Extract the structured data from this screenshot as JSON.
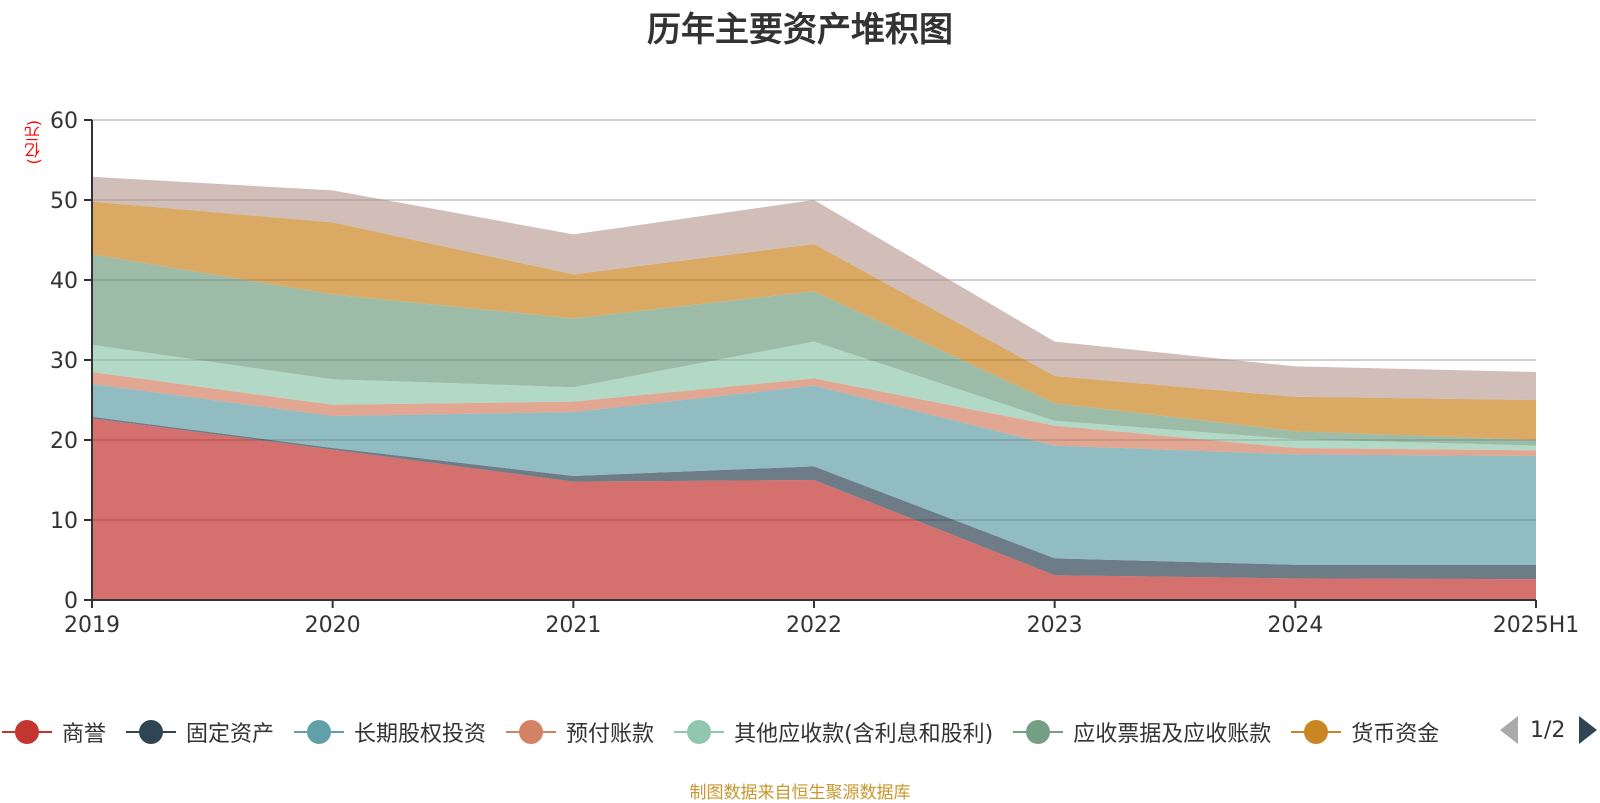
{
  "chart_data": {
    "type": "area",
    "stacked": true,
    "title": "历年主要资产堆积图",
    "ylabel": "(亿元)",
    "xlabel": "",
    "categories": [
      "2019",
      "2020",
      "2021",
      "2022",
      "2023",
      "2024",
      "2025H1"
    ],
    "ylim": [
      0,
      60
    ],
    "yticks": [
      0,
      10,
      20,
      30,
      40,
      50,
      60
    ],
    "grid": true,
    "legend_position": "bottom",
    "series": [
      {
        "name": "商誉",
        "color": "#c23531",
        "values": [
          22.7,
          18.8,
          14.8,
          15.0,
          3.1,
          2.7,
          2.6
        ]
      },
      {
        "name": "固定资产",
        "color": "#2f4554",
        "values": [
          0.2,
          0.2,
          0.7,
          1.7,
          2.1,
          1.7,
          1.8
        ]
      },
      {
        "name": "长期股权投资",
        "color": "#61a0a8",
        "values": [
          4.1,
          4.0,
          8.0,
          10.1,
          14.1,
          13.8,
          13.6
        ]
      },
      {
        "name": "预付账款",
        "color": "#d48265",
        "values": [
          1.5,
          1.4,
          1.3,
          0.9,
          2.5,
          0.8,
          0.7
        ]
      },
      {
        "name": "其他应收款(含利息和股利)",
        "color": "#91c7ae",
        "values": [
          3.4,
          3.2,
          1.8,
          4.6,
          0.6,
          1.1,
          0.6
        ]
      },
      {
        "name": "应收票据及应收账款",
        "color": "#749f83",
        "values": [
          11.3,
          10.6,
          8.6,
          6.3,
          2.2,
          1.0,
          0.7
        ]
      },
      {
        "name": "货币资金",
        "color": "#ca8622",
        "values": [
          6.6,
          9.0,
          5.5,
          5.9,
          3.4,
          4.3,
          5.0
        ]
      },
      {
        "name": "",
        "color": "#bda29a",
        "values": [
          3.1,
          4.0,
          5.0,
          5.5,
          4.3,
          3.8,
          3.5
        ]
      }
    ]
  },
  "legend": {
    "items": [
      "商誉",
      "固定资产",
      "长期股权投资",
      "预付账款",
      "其他应收款(含利息和股利)",
      "应收票据及应收账款",
      "货币资金"
    ],
    "colors": [
      "#c23531",
      "#2f4554",
      "#61a0a8",
      "#d48265",
      "#91c7ae",
      "#749f83",
      "#ca8622"
    ],
    "page": "1/2"
  },
  "footer": "制图数据来自恒生聚源数据库"
}
